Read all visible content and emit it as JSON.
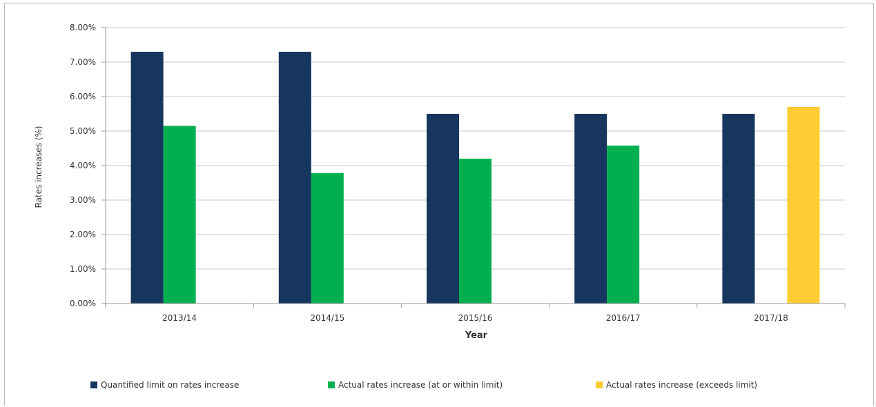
{
  "chart_data": {
    "type": "bar",
    "title": "",
    "xlabel": "Year",
    "ylabel": "Rates increases (%)",
    "categories": [
      "2013/14",
      "2014/15",
      "2015/16",
      "2016/17",
      "2017/18"
    ],
    "ylim": [
      0,
      8
    ],
    "yticks": [
      "0.00%",
      "1.00%",
      "2.00%",
      "3.00%",
      "4.00%",
      "5.00%",
      "6.00%",
      "7.00%",
      "8.00%"
    ],
    "grid": true,
    "legend_position": "bottom",
    "series": [
      {
        "name": "Quantified limit on rates increase",
        "color": "#17365d",
        "values": [
          7.3,
          7.3,
          5.5,
          5.5,
          5.5
        ]
      },
      {
        "name": "Actual rates increase (at or within limit)",
        "color": "#00b050",
        "values": [
          5.15,
          3.78,
          4.2,
          4.58,
          null
        ]
      },
      {
        "name": "Actual rates increase (exceeds limit)",
        "color": "#ffcc33",
        "values": [
          null,
          null,
          null,
          null,
          5.7
        ]
      }
    ]
  }
}
